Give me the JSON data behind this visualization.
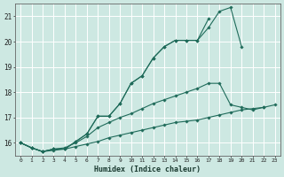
{
  "title": "",
  "xlabel": "Humidex (Indice chaleur)",
  "ylabel": "",
  "bg_color": "#cde8e2",
  "grid_color": "#ffffff",
  "line_color": "#1f6b5a",
  "xlim": [
    -0.5,
    23.5
  ],
  "ylim": [
    15.5,
    21.5
  ],
  "yticks": [
    16,
    17,
    18,
    19,
    20,
    21
  ],
  "xticks": [
    0,
    1,
    2,
    3,
    4,
    5,
    6,
    7,
    8,
    9,
    10,
    11,
    12,
    13,
    14,
    15,
    16,
    17,
    18,
    19,
    20,
    21,
    22,
    23
  ],
  "lines": [
    {
      "x": [
        0,
        1,
        2,
        3,
        4,
        5,
        6,
        7,
        8,
        9,
        10,
        11,
        12,
        13,
        14,
        15,
        16,
        17,
        18,
        19,
        20
      ],
      "y": [
        16.0,
        15.8,
        15.65,
        15.75,
        15.75,
        16.05,
        16.35,
        17.05,
        17.05,
        17.55,
        18.35,
        18.65,
        19.35,
        19.8,
        20.05,
        20.05,
        20.05,
        20.55,
        21.2,
        21.35,
        19.8
      ]
    },
    {
      "x": [
        0,
        1,
        2,
        3,
        4,
        5,
        6,
        7,
        8,
        9,
        10,
        11,
        12,
        13,
        14,
        15,
        16,
        17
      ],
      "y": [
        16.0,
        15.8,
        15.65,
        15.75,
        15.75,
        16.05,
        16.35,
        17.05,
        17.05,
        17.55,
        18.35,
        18.65,
        19.35,
        19.8,
        20.05,
        20.05,
        20.05,
        20.9
      ]
    },
    {
      "x": [
        0,
        1,
        2,
        3,
        4,
        5,
        6,
        7,
        8,
        9,
        10,
        11,
        12,
        13,
        14,
        15,
        16,
        17,
        18,
        19,
        20,
        21,
        22
      ],
      "y": [
        16.0,
        15.8,
        15.65,
        15.75,
        15.8,
        16.0,
        16.25,
        16.6,
        16.8,
        17.0,
        17.15,
        17.35,
        17.55,
        17.7,
        17.85,
        18.0,
        18.15,
        18.35,
        18.35,
        17.5,
        17.4,
        17.3,
        17.4
      ]
    },
    {
      "x": [
        0,
        1,
        2,
        3,
        4,
        5,
        6,
        7,
        8,
        9,
        10,
        11,
        12,
        13,
        14,
        15,
        16,
        17,
        18,
        19,
        20,
        21,
        22,
        23
      ],
      "y": [
        16.0,
        15.8,
        15.65,
        15.7,
        15.75,
        15.85,
        15.95,
        16.05,
        16.2,
        16.3,
        16.4,
        16.5,
        16.6,
        16.7,
        16.8,
        16.85,
        16.9,
        17.0,
        17.1,
        17.2,
        17.3,
        17.35,
        17.4,
        17.5
      ]
    }
  ]
}
